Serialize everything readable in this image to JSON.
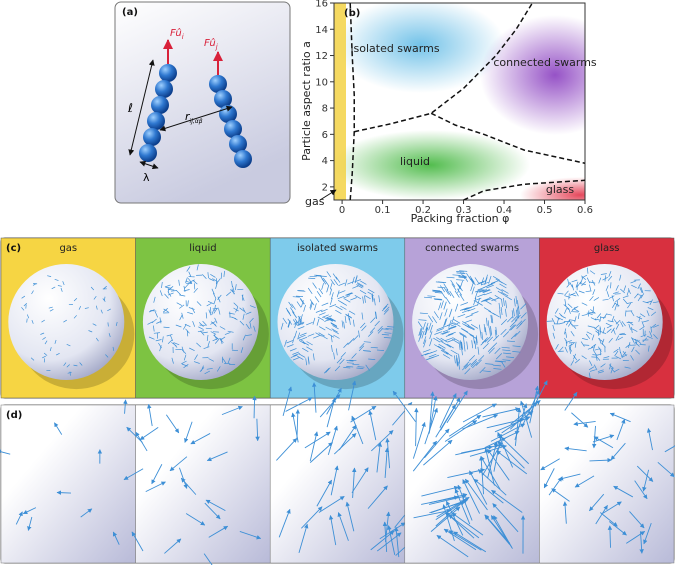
{
  "panel_a": {
    "label": "(a)",
    "force_i": {
      "main": "Fû",
      "sub": "i"
    },
    "force_j": {
      "main": "Fû",
      "sub": "j"
    },
    "length": "ℓ",
    "width": "λ",
    "distance": {
      "main": "r",
      "sub": "ij,αβ"
    }
  },
  "chart_data": {
    "type": "region",
    "label": "(b)",
    "xlabel": "Packing fraction φ",
    "ylabel": "Particle aspect ratio a",
    "xlim": [
      -0.02,
      0.6
    ],
    "ylim": [
      1,
      16
    ],
    "xticks": [
      0,
      0.1,
      0.2,
      0.3,
      0.4,
      0.5,
      0.6
    ],
    "yticks": [
      2,
      4,
      6,
      8,
      10,
      12,
      14,
      16
    ],
    "regions": [
      "isolated swarms",
      "connected swarms",
      "liquid",
      "glass",
      "gas"
    ],
    "series": [
      {
        "x": [
          0.02,
          0.025,
          0.03,
          0.03,
          0.025,
          0.02
        ],
        "values": [
          1,
          3,
          6.2,
          9,
          12,
          16
        ]
      },
      {
        "x": [
          0.03,
          0.12,
          0.22,
          0.3,
          0.38,
          0.43,
          0.47
        ],
        "values": [
          6.2,
          6.8,
          7.6,
          9.5,
          12,
          14,
          16
        ]
      },
      {
        "x": [
          0.22,
          0.28,
          0.35,
          0.45,
          0.6
        ],
        "values": [
          7.6,
          6.7,
          6,
          4.8,
          3.8
        ]
      },
      {
        "x": [
          0.3,
          0.35,
          0.45,
          0.6
        ],
        "values": [
          1,
          1.7,
          2.2,
          2.5
        ]
      }
    ]
  },
  "panel_c": {
    "label": "(c)",
    "titles": [
      "gas",
      "liquid",
      "isolated swarms",
      "connected swarms",
      "glass"
    ]
  },
  "panel_d": {
    "label": "(d)"
  }
}
